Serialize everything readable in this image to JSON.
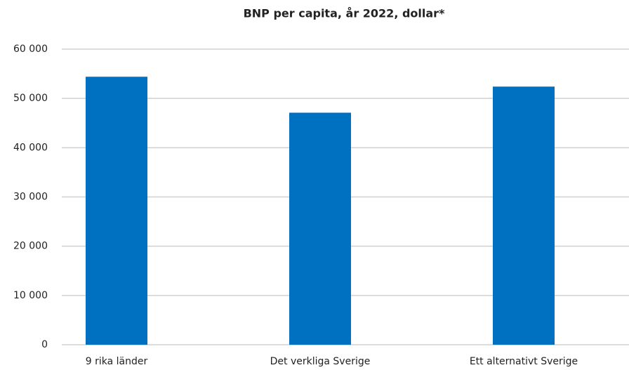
{
  "chart_data": {
    "type": "bar",
    "title": "BNP per capita, år 2022, dollar*",
    "categories": [
      "9 rika länder",
      "Det verkliga Sverige",
      "Ett alternativt Sverige"
    ],
    "values": [
      54400,
      47100,
      52400
    ],
    "color": "#0070c0",
    "ylim": [
      0,
      60000
    ],
    "yticks": [
      0,
      {
        "value": 10000,
        "label": "10 000"
      },
      {
        "value": 20000,
        "label": "20 000"
      },
      {
        "value": 30000,
        "label": "30 000"
      },
      {
        "value": 40000,
        "label": "40 000"
      },
      {
        "value": 50000,
        "label": "50 000"
      },
      {
        "value": 60000,
        "label": "60 000"
      }
    ],
    "grid": true
  }
}
